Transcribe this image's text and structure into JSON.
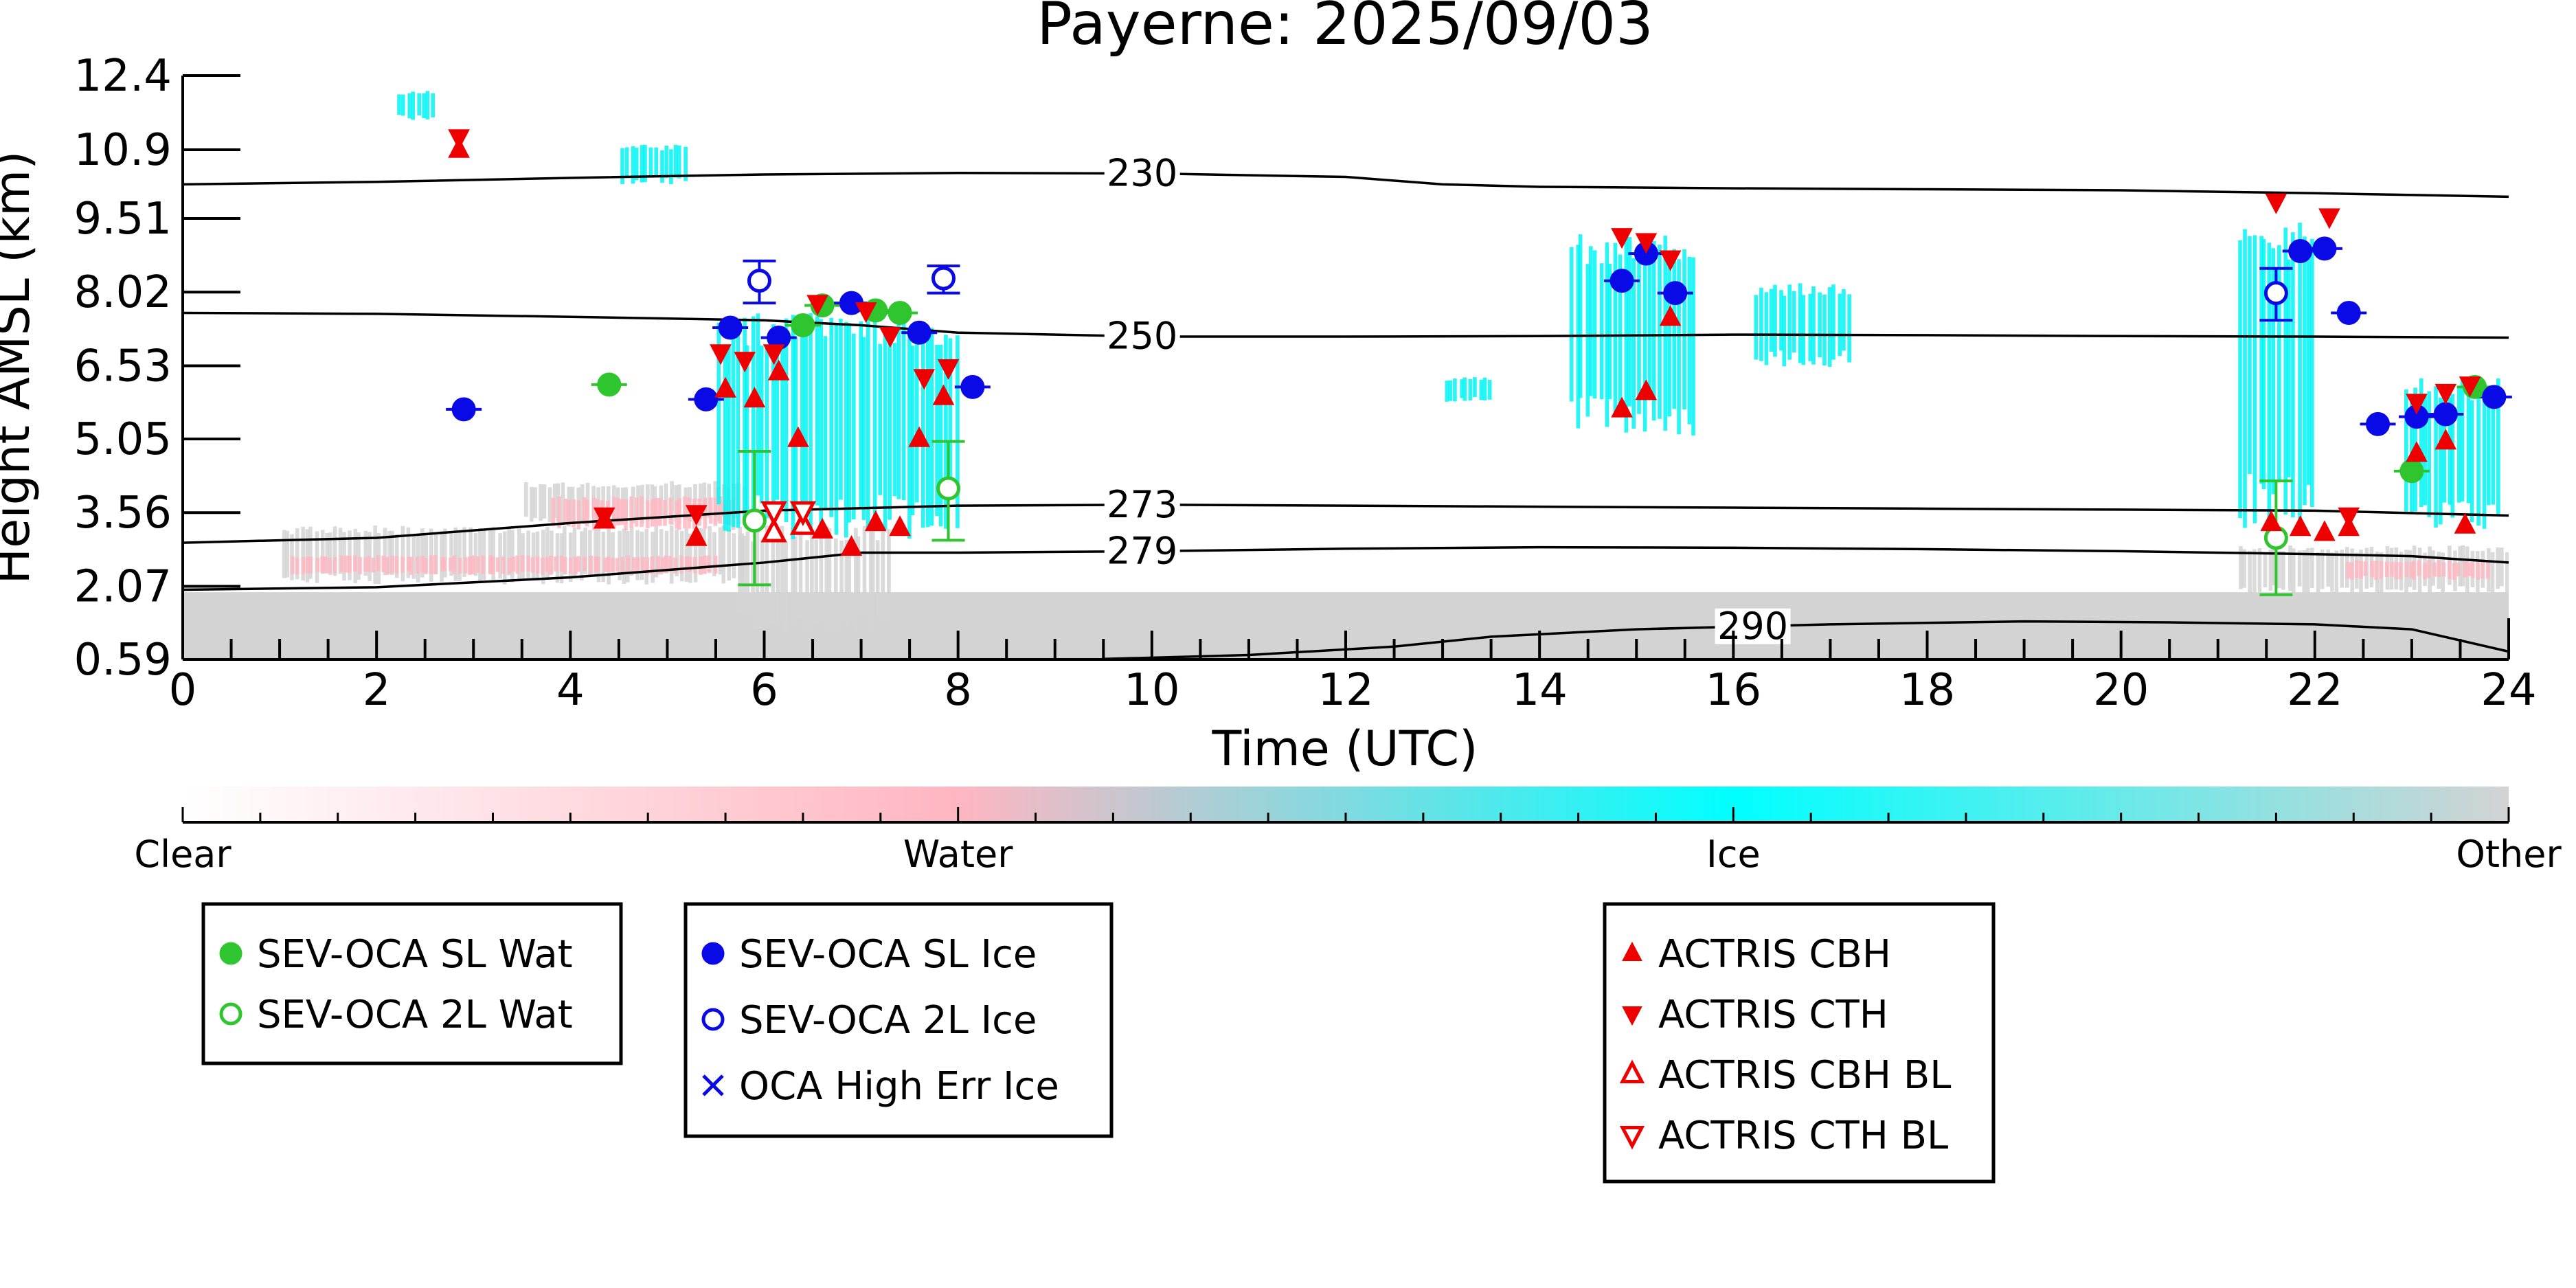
{
  "chart_data": {
    "type": "scatter",
    "title": "Payerne: 2025/09/03",
    "xlabel": "Time (UTC)",
    "ylabel": "Height AMSL (km)",
    "xlim": [
      0,
      24
    ],
    "ylim": [
      0.59,
      12.4
    ],
    "x_ticks": [
      0,
      2,
      4,
      6,
      8,
      10,
      12,
      14,
      16,
      18,
      20,
      22,
      24
    ],
    "y_ticks": [
      "0.59",
      "2.07",
      "3.56",
      "5.05",
      "6.53",
      "8.02",
      "9.51",
      "10.9",
      "12.4"
    ],
    "y_tick_values": [
      0.59,
      2.07,
      3.56,
      5.05,
      6.53,
      8.02,
      9.51,
      10.9,
      12.4
    ],
    "grid": false,
    "colorbar": {
      "labels": [
        "Clear",
        "Water",
        "Ice",
        "Other"
      ],
      "colors": [
        "#ffffff",
        "#ffb6c1",
        "#00ffff",
        "#d3d3d3"
      ]
    },
    "classification_colors": {
      "water": "#ffb6c1",
      "ice": "#00f5f5",
      "other": "#d3d3d3"
    },
    "cloud_regions": [
      {
        "class": "other",
        "x": [
          0.0,
          24.0
        ],
        "y": [
          0.59,
          1.95
        ]
      },
      {
        "class": "other",
        "x": [
          1.0,
          5.8
        ],
        "y": [
          2.1,
          3.3
        ]
      },
      {
        "class": "water",
        "x": [
          1.1,
          5.5
        ],
        "y": [
          2.3,
          2.7
        ]
      },
      {
        "class": "other",
        "x": [
          3.5,
          5.8
        ],
        "y": [
          3.3,
          4.2
        ]
      },
      {
        "class": "water",
        "x": [
          3.8,
          5.7
        ],
        "y": [
          3.2,
          3.9
        ]
      },
      {
        "class": "other",
        "x": [
          5.7,
          7.3
        ],
        "y": [
          1.1,
          3.3
        ]
      },
      {
        "class": "ice",
        "x": [
          5.5,
          8.0
        ],
        "y": [
          3.0,
          7.6
        ]
      },
      {
        "class": "ice",
        "x": [
          2.2,
          2.6
        ],
        "y": [
          11.5,
          12.1
        ]
      },
      {
        "class": "ice",
        "x": [
          4.5,
          5.2
        ],
        "y": [
          10.2,
          11.0
        ]
      },
      {
        "class": "ice",
        "x": [
          14.3,
          15.6
        ],
        "y": [
          5.1,
          9.2
        ]
      },
      {
        "class": "ice",
        "x": [
          16.2,
          17.2
        ],
        "y": [
          6.5,
          8.2
        ]
      },
      {
        "class": "ice",
        "x": [
          13.0,
          13.5
        ],
        "y": [
          5.8,
          6.3
        ]
      },
      {
        "class": "ice",
        "x": [
          21.2,
          22.0
        ],
        "y": [
          3.2,
          9.6
        ]
      },
      {
        "class": "ice",
        "x": [
          22.9,
          23.9
        ],
        "y": [
          3.2,
          6.3
        ]
      },
      {
        "class": "other",
        "x": [
          21.2,
          24.0
        ],
        "y": [
          1.9,
          2.9
        ]
      },
      {
        "class": "water",
        "x": [
          22.3,
          23.8
        ],
        "y": [
          2.2,
          2.6
        ]
      }
    ],
    "isotherms": [
      {
        "label": "230",
        "x": [
          0,
          2,
          4,
          6,
          8,
          10,
          12,
          13,
          14,
          16,
          18,
          20,
          22,
          24
        ],
        "y": [
          10.2,
          10.25,
          10.33,
          10.4,
          10.43,
          10.42,
          10.35,
          10.2,
          10.15,
          10.12,
          10.1,
          10.08,
          10.02,
          9.95
        ]
      },
      {
        "label": "250",
        "x": [
          0,
          2,
          4,
          6,
          7,
          8,
          10,
          12,
          14,
          16,
          18,
          20,
          22,
          24
        ],
        "y": [
          7.6,
          7.58,
          7.52,
          7.45,
          7.35,
          7.2,
          7.12,
          7.12,
          7.13,
          7.16,
          7.15,
          7.13,
          7.12,
          7.1
        ]
      },
      {
        "label": "273",
        "x": [
          0,
          2,
          4,
          6,
          8,
          10,
          12,
          14,
          16,
          18,
          20,
          22,
          24
        ],
        "y": [
          2.95,
          3.05,
          3.35,
          3.6,
          3.7,
          3.72,
          3.7,
          3.68,
          3.66,
          3.64,
          3.62,
          3.6,
          3.5
        ]
      },
      {
        "label": "279",
        "x": [
          0,
          2,
          4,
          6,
          7,
          8,
          10,
          12,
          14,
          16,
          18,
          20,
          22,
          23,
          24
        ],
        "y": [
          2.0,
          2.05,
          2.25,
          2.55,
          2.75,
          2.75,
          2.78,
          2.83,
          2.86,
          2.85,
          2.82,
          2.78,
          2.72,
          2.68,
          2.55
        ]
      },
      {
        "label": "290",
        "x": [
          9.5,
          11,
          12.5,
          13.5,
          15,
          17,
          19,
          20.5,
          22,
          23,
          24
        ],
        "y": [
          0.6,
          0.68,
          0.85,
          1.05,
          1.2,
          1.3,
          1.36,
          1.34,
          1.3,
          1.2,
          0.75
        ]
      }
    ],
    "series": [
      {
        "name": "SEV-OCA SL Wat",
        "marker": "filled-circle",
        "color": "#2ec52e",
        "points": [
          {
            "x": 4.4,
            "y": 6.15
          },
          {
            "x": 6.4,
            "y": 7.35
          },
          {
            "x": 6.6,
            "y": 7.75
          },
          {
            "x": 7.15,
            "y": 7.65
          },
          {
            "x": 7.4,
            "y": 7.6
          },
          {
            "x": 23.0,
            "y": 4.4
          },
          {
            "x": 23.65,
            "y": 6.1
          }
        ]
      },
      {
        "name": "SEV-OCA 2L Wat",
        "marker": "open-circle",
        "color": "#2ec52e",
        "points": [
          {
            "x": 5.9,
            "y": 3.4,
            "ylow": 2.1,
            "yhigh": 4.8
          },
          {
            "x": 7.9,
            "y": 4.05,
            "ylow": 3.0,
            "yhigh": 5.0
          },
          {
            "x": 21.6,
            "y": 3.05,
            "ylow": 1.9,
            "yhigh": 4.2
          }
        ]
      },
      {
        "name": "SEV-OCA SL Ice",
        "marker": "filled-circle",
        "color": "#0a0ae6",
        "points": [
          {
            "x": 2.9,
            "y": 5.65
          },
          {
            "x": 5.4,
            "y": 5.85
          },
          {
            "x": 5.65,
            "y": 7.3
          },
          {
            "x": 6.15,
            "y": 7.1
          },
          {
            "x": 6.9,
            "y": 7.8
          },
          {
            "x": 7.6,
            "y": 7.2
          },
          {
            "x": 8.15,
            "y": 6.1
          },
          {
            "x": 14.85,
            "y": 8.25
          },
          {
            "x": 15.1,
            "y": 8.8
          },
          {
            "x": 15.4,
            "y": 8.0
          },
          {
            "x": 21.85,
            "y": 8.85
          },
          {
            "x": 22.1,
            "y": 8.9
          },
          {
            "x": 22.35,
            "y": 7.6
          },
          {
            "x": 22.65,
            "y": 5.35
          },
          {
            "x": 23.05,
            "y": 5.5
          },
          {
            "x": 23.35,
            "y": 5.55
          },
          {
            "x": 23.85,
            "y": 5.9
          }
        ]
      },
      {
        "name": "SEV-OCA 2L Ice",
        "marker": "open-circle",
        "color": "#0a0ae6",
        "points": [
          {
            "x": 5.95,
            "y": 8.25,
            "ylow": 7.8,
            "yhigh": 8.65
          },
          {
            "x": 7.85,
            "y": 8.3,
            "ylow": 8.0,
            "yhigh": 8.55
          },
          {
            "x": 21.6,
            "y": 8.0,
            "ylow": 7.45,
            "yhigh": 8.5
          }
        ]
      },
      {
        "name": "OCA High Err Ice",
        "marker": "x",
        "color": "#0a0ae6",
        "points": []
      },
      {
        "name": "ACTRIS CBH",
        "marker": "triangle-up",
        "color": "#ee0000",
        "points": [
          {
            "x": 2.85,
            "y": 10.9
          },
          {
            "x": 4.35,
            "y": 3.4
          },
          {
            "x": 5.3,
            "y": 3.05
          },
          {
            "x": 5.6,
            "y": 6.05
          },
          {
            "x": 5.9,
            "y": 5.85
          },
          {
            "x": 6.15,
            "y": 6.4
          },
          {
            "x": 6.35,
            "y": 5.05
          },
          {
            "x": 6.6,
            "y": 3.2
          },
          {
            "x": 6.9,
            "y": 2.85
          },
          {
            "x": 7.15,
            "y": 3.35
          },
          {
            "x": 7.4,
            "y": 3.25
          },
          {
            "x": 7.6,
            "y": 5.05
          },
          {
            "x": 7.85,
            "y": 5.9
          },
          {
            "x": 14.85,
            "y": 5.65
          },
          {
            "x": 15.1,
            "y": 6.0
          },
          {
            "x": 15.35,
            "y": 7.5
          },
          {
            "x": 21.55,
            "y": 3.35
          },
          {
            "x": 21.85,
            "y": 3.25
          },
          {
            "x": 22.1,
            "y": 3.15
          },
          {
            "x": 22.35,
            "y": 3.25
          },
          {
            "x": 23.05,
            "y": 4.75
          },
          {
            "x": 23.35,
            "y": 5.0
          },
          {
            "x": 23.55,
            "y": 3.3
          }
        ]
      },
      {
        "name": "ACTRIS CTH",
        "marker": "triangle-down",
        "color": "#ee0000",
        "points": [
          {
            "x": 2.85,
            "y": 11.15
          },
          {
            "x": 4.35,
            "y": 3.5
          },
          {
            "x": 5.3,
            "y": 3.55
          },
          {
            "x": 5.55,
            "y": 6.8
          },
          {
            "x": 5.8,
            "y": 6.65
          },
          {
            "x": 6.1,
            "y": 6.8
          },
          {
            "x": 6.55,
            "y": 7.8
          },
          {
            "x": 7.05,
            "y": 7.65
          },
          {
            "x": 7.3,
            "y": 7.15
          },
          {
            "x": 7.65,
            "y": 6.3
          },
          {
            "x": 7.9,
            "y": 6.5
          },
          {
            "x": 14.85,
            "y": 9.15
          },
          {
            "x": 15.1,
            "y": 9.05
          },
          {
            "x": 15.35,
            "y": 8.7
          },
          {
            "x": 21.6,
            "y": 9.85
          },
          {
            "x": 22.15,
            "y": 9.55
          },
          {
            "x": 22.35,
            "y": 3.5
          },
          {
            "x": 23.05,
            "y": 5.8
          },
          {
            "x": 23.35,
            "y": 6.0
          },
          {
            "x": 23.6,
            "y": 6.15
          }
        ]
      },
      {
        "name": "ACTRIS CBH BL",
        "marker": "open-triangle-up",
        "color": "#ee0000",
        "points": [
          {
            "x": 6.1,
            "y": 3.15
          },
          {
            "x": 6.4,
            "y": 3.3
          }
        ]
      },
      {
        "name": "ACTRIS CTH BL",
        "marker": "open-triangle-down",
        "color": "#ee0000",
        "points": [
          {
            "x": 6.1,
            "y": 3.6
          },
          {
            "x": 6.4,
            "y": 3.6
          }
        ]
      }
    ],
    "legend": [
      {
        "entries": [
          "SEV-OCA SL Wat",
          "SEV-OCA 2L Wat"
        ]
      },
      {
        "entries": [
          "SEV-OCA SL Ice",
          "SEV-OCA 2L Ice",
          "OCA High Err Ice"
        ]
      },
      {
        "entries": [
          "ACTRIS CBH",
          "ACTRIS CTH",
          "ACTRIS CBH BL",
          "ACTRIS CTH BL"
        ]
      }
    ],
    "legend_placement": "bottom"
  }
}
